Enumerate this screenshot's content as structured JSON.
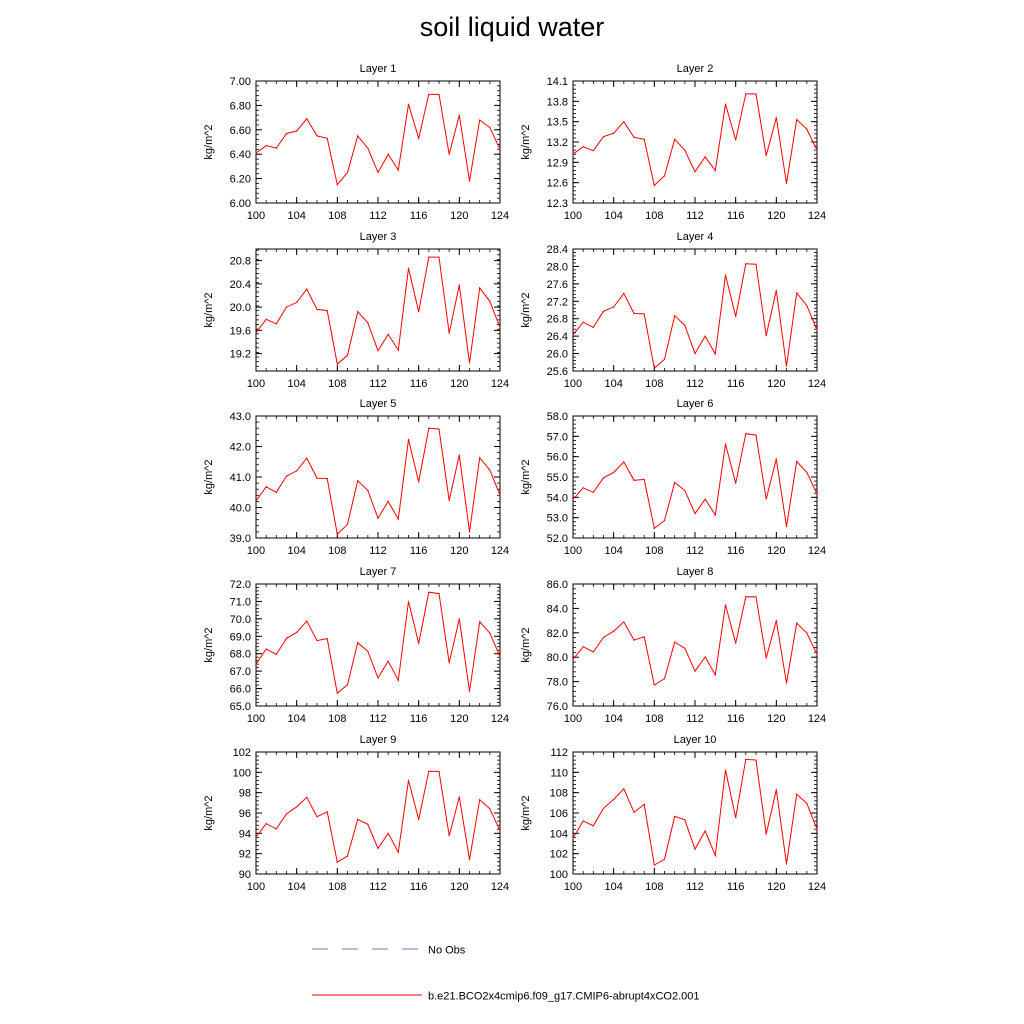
{
  "title": "soil liquid water",
  "legend": {
    "obs_label": "No Obs",
    "obs_color": "#7777cc",
    "model_label": "b.e21.BCO2x4cmip6.f09_g17.CMIP6-abrupt4xCO2.001",
    "model_color": "#ff0000"
  },
  "chart_data": [
    {
      "type": "line",
      "title": "Layer 1",
      "ylabel": "kg/m^2",
      "xlim": [
        100,
        124
      ],
      "xticks": [
        100,
        104,
        108,
        112,
        116,
        120,
        124
      ],
      "ylim": [
        6.0,
        7.0
      ],
      "yticks": [
        "6.00",
        "6.20",
        "6.40",
        "6.60",
        "6.80",
        "7.00"
      ],
      "x": [
        100,
        101,
        102,
        103,
        104,
        105,
        106,
        107,
        108,
        109,
        110,
        111,
        112,
        113,
        114,
        115,
        116,
        117,
        118,
        119,
        120,
        121,
        122,
        123,
        124
      ],
      "series": [
        {
          "name": "b.e21.BCO2x4cmip6.f09_g17.CMIP6-abrupt4xCO2.001",
          "values": [
            6.41,
            6.47,
            6.45,
            6.57,
            6.59,
            6.69,
            6.55,
            6.53,
            6.15,
            6.25,
            6.55,
            6.45,
            6.25,
            6.4,
            6.27,
            6.81,
            6.53,
            6.89,
            6.89,
            6.4,
            6.72,
            6.18,
            6.68,
            6.62,
            6.44
          ]
        }
      ]
    },
    {
      "type": "line",
      "title": "Layer 2",
      "ylabel": "kg/m^2",
      "xlim": [
        100,
        124
      ],
      "xticks": [
        100,
        104,
        108,
        112,
        116,
        120,
        124
      ],
      "ylim": [
        12.3,
        14.1
      ],
      "yticks": [
        "12.3",
        "12.6",
        "12.9",
        "13.2",
        "13.5",
        "13.8",
        "14.1"
      ],
      "x": [
        100,
        101,
        102,
        103,
        104,
        105,
        106,
        107,
        108,
        109,
        110,
        111,
        112,
        113,
        114,
        115,
        116,
        117,
        118,
        119,
        120,
        121,
        122,
        123,
        124
      ],
      "series": [
        {
          "name": "b.e21.BCO2x4cmip6.f09_g17.CMIP6-abrupt4xCO2.001",
          "values": [
            13.02,
            13.13,
            13.07,
            13.28,
            13.33,
            13.5,
            13.27,
            13.24,
            12.56,
            12.7,
            13.24,
            13.08,
            12.76,
            12.98,
            12.78,
            13.76,
            13.23,
            13.91,
            13.91,
            13.0,
            13.56,
            12.59,
            13.53,
            13.39,
            13.08
          ]
        }
      ]
    },
    {
      "type": "line",
      "title": "Layer 3",
      "ylabel": "kg/m^2",
      "xlim": [
        100,
        124
      ],
      "xticks": [
        100,
        104,
        108,
        112,
        116,
        120,
        124
      ],
      "ylim": [
        18.9,
        21.0
      ],
      "yticks": [
        "19.2",
        "19.6",
        "20.0",
        "20.4",
        "20.8"
      ],
      "x": [
        100,
        101,
        102,
        103,
        104,
        105,
        106,
        107,
        108,
        109,
        110,
        111,
        112,
        113,
        114,
        115,
        116,
        117,
        118,
        119,
        120,
        121,
        122,
        123,
        124
      ],
      "series": [
        {
          "name": "b.e21.BCO2x4cmip6.f09_g17.CMIP6-abrupt4xCO2.001",
          "values": [
            19.56,
            19.79,
            19.71,
            20.0,
            20.08,
            20.31,
            19.96,
            19.94,
            19.02,
            19.17,
            19.92,
            19.73,
            19.25,
            19.53,
            19.26,
            20.67,
            19.92,
            20.86,
            20.86,
            19.55,
            20.38,
            19.04,
            20.33,
            20.1,
            19.65
          ]
        }
      ]
    },
    {
      "type": "line",
      "title": "Layer 4",
      "ylabel": "kg/m^2",
      "xlim": [
        100,
        124
      ],
      "xticks": [
        100,
        104,
        108,
        112,
        116,
        120,
        124
      ],
      "ylim": [
        25.6,
        28.4
      ],
      "yticks": [
        "25.6",
        "26.0",
        "26.4",
        "26.8",
        "27.2",
        "27.6",
        "28.0",
        "28.4"
      ],
      "x": [
        100,
        101,
        102,
        103,
        104,
        105,
        106,
        107,
        108,
        109,
        110,
        111,
        112,
        113,
        114,
        115,
        116,
        117,
        118,
        119,
        120,
        121,
        122,
        123,
        124
      ],
      "series": [
        {
          "name": "b.e21.BCO2x4cmip6.f09_g17.CMIP6-abrupt4xCO2.001",
          "values": [
            26.43,
            26.72,
            26.6,
            26.97,
            27.07,
            27.38,
            26.92,
            26.91,
            25.66,
            25.87,
            26.87,
            26.65,
            26.0,
            26.4,
            25.99,
            27.8,
            26.85,
            28.06,
            28.05,
            26.41,
            27.45,
            25.71,
            27.39,
            27.1,
            26.54
          ]
        }
      ]
    },
    {
      "type": "line",
      "title": "Layer 5",
      "ylabel": "kg/m^2",
      "xlim": [
        100,
        124
      ],
      "xticks": [
        100,
        104,
        108,
        112,
        116,
        120,
        124
      ],
      "ylim": [
        39.0,
        43.0
      ],
      "yticks": [
        "39.0",
        "40.0",
        "41.0",
        "42.0",
        "43.0"
      ],
      "x": [
        100,
        101,
        102,
        103,
        104,
        105,
        106,
        107,
        108,
        109,
        110,
        111,
        112,
        113,
        114,
        115,
        116,
        117,
        118,
        119,
        120,
        121,
        122,
        123,
        124
      ],
      "series": [
        {
          "name": "b.e21.BCO2x4cmip6.f09_g17.CMIP6-abrupt4xCO2.001",
          "values": [
            40.22,
            40.68,
            40.5,
            41.03,
            41.2,
            41.62,
            40.96,
            40.95,
            39.12,
            39.45,
            40.88,
            40.56,
            39.65,
            40.2,
            39.62,
            42.23,
            40.84,
            42.6,
            42.57,
            40.23,
            41.72,
            39.2,
            41.63,
            41.23,
            40.41
          ]
        }
      ]
    },
    {
      "type": "line",
      "title": "Layer 6",
      "ylabel": "kg/m^2",
      "xlim": [
        100,
        124
      ],
      "xticks": [
        100,
        104,
        108,
        112,
        116,
        120,
        124
      ],
      "ylim": [
        52.0,
        58.0
      ],
      "yticks": [
        "52.0",
        "53.0",
        "54.0",
        "55.0",
        "56.0",
        "57.0",
        "58.0"
      ],
      "x": [
        100,
        101,
        102,
        103,
        104,
        105,
        106,
        107,
        108,
        109,
        110,
        111,
        112,
        113,
        114,
        115,
        116,
        117,
        118,
        119,
        120,
        121,
        122,
        123,
        124
      ],
      "series": [
        {
          "name": "b.e21.BCO2x4cmip6.f09_g17.CMIP6-abrupt4xCO2.001",
          "values": [
            53.9,
            54.47,
            54.25,
            54.96,
            55.22,
            55.74,
            54.84,
            54.88,
            52.47,
            52.86,
            54.73,
            54.34,
            53.2,
            53.91,
            53.13,
            56.63,
            54.69,
            57.13,
            57.06,
            53.92,
            55.89,
            52.56,
            55.76,
            55.23,
            54.16
          ]
        }
      ]
    },
    {
      "type": "line",
      "title": "Layer 7",
      "ylabel": "kg/m^2",
      "xlim": [
        100,
        124
      ],
      "xticks": [
        100,
        104,
        108,
        112,
        116,
        120,
        124
      ],
      "ylim": [
        65.0,
        72.0
      ],
      "yticks": [
        "65.0",
        "66.0",
        "67.0",
        "68.0",
        "69.0",
        "70.0",
        "71.0",
        "72.0"
      ],
      "x": [
        100,
        101,
        102,
        103,
        104,
        105,
        106,
        107,
        108,
        109,
        110,
        111,
        112,
        113,
        114,
        115,
        116,
        117,
        118,
        119,
        120,
        121,
        122,
        123,
        124
      ],
      "series": [
        {
          "name": "b.e21.BCO2x4cmip6.f09_g17.CMIP6-abrupt4xCO2.001",
          "values": [
            67.4,
            68.27,
            67.96,
            68.88,
            69.23,
            69.87,
            68.75,
            68.87,
            65.73,
            66.22,
            68.63,
            68.14,
            66.61,
            67.57,
            66.47,
            71.0,
            68.59,
            71.53,
            71.45,
            67.48,
            70.0,
            65.84,
            69.83,
            69.18,
            67.84
          ]
        }
      ]
    },
    {
      "type": "line",
      "title": "Layer 8",
      "ylabel": "kg/m^2",
      "xlim": [
        100,
        124
      ],
      "xticks": [
        100,
        104,
        108,
        112,
        116,
        120,
        124
      ],
      "ylim": [
        76.0,
        86.0
      ],
      "yticks": [
        "76.0",
        "78.0",
        "80.0",
        "82.0",
        "84.0",
        "86.0"
      ],
      "x": [
        100,
        101,
        102,
        103,
        104,
        105,
        106,
        107,
        108,
        109,
        110,
        111,
        112,
        113,
        114,
        115,
        116,
        117,
        118,
        119,
        120,
        121,
        122,
        123,
        124
      ],
      "series": [
        {
          "name": "b.e21.BCO2x4cmip6.f09_g17.CMIP6-abrupt4xCO2.001",
          "values": [
            79.82,
            80.86,
            80.43,
            81.62,
            82.13,
            82.89,
            81.4,
            81.67,
            77.72,
            78.24,
            81.24,
            80.74,
            78.86,
            80.02,
            78.55,
            84.3,
            81.14,
            84.95,
            84.94,
            79.93,
            83.0,
            77.87,
            82.79,
            81.99,
            80.24
          ]
        }
      ]
    },
    {
      "type": "line",
      "title": "Layer 9",
      "ylabel": "kg/m^2",
      "xlim": [
        100,
        124
      ],
      "xticks": [
        100,
        104,
        108,
        112,
        116,
        120,
        124
      ],
      "ylim": [
        90,
        102
      ],
      "yticks": [
        "90",
        "92",
        "94",
        "96",
        "98",
        "100",
        "102"
      ],
      "x": [
        100,
        101,
        102,
        103,
        104,
        105,
        106,
        107,
        108,
        109,
        110,
        111,
        112,
        113,
        114,
        115,
        116,
        117,
        118,
        119,
        120,
        121,
        122,
        123,
        124
      ],
      "series": [
        {
          "name": "b.e21.BCO2x4cmip6.f09_g17.CMIP6-abrupt4xCO2.001",
          "values": [
            93.63,
            94.96,
            94.44,
            95.92,
            96.61,
            97.54,
            95.64,
            96.12,
            91.17,
            91.77,
            95.37,
            94.89,
            92.52,
            94.0,
            92.14,
            99.22,
            95.36,
            100.11,
            100.09,
            93.77,
            97.58,
            91.41,
            97.3,
            96.42,
            94.25
          ]
        }
      ]
    },
    {
      "type": "line",
      "title": "Layer 10",
      "ylabel": "kg/m^2",
      "xlim": [
        100,
        124
      ],
      "xticks": [
        100,
        104,
        108,
        112,
        116,
        120,
        124
      ],
      "ylim": [
        100,
        112
      ],
      "yticks": [
        "100",
        "102",
        "104",
        "106",
        "108",
        "110",
        "112"
      ],
      "x": [
        100,
        101,
        102,
        103,
        104,
        105,
        106,
        107,
        108,
        109,
        110,
        111,
        112,
        113,
        114,
        115,
        116,
        117,
        118,
        119,
        120,
        121,
        122,
        123,
        124
      ],
      "series": [
        {
          "name": "b.e21.BCO2x4cmip6.f09_g17.CMIP6-abrupt4xCO2.001",
          "values": [
            103.53,
            105.22,
            104.74,
            106.46,
            107.34,
            108.38,
            106.07,
            106.85,
            100.89,
            101.45,
            105.67,
            105.33,
            102.45,
            104.24,
            101.83,
            110.23,
            105.55,
            111.27,
            111.21,
            103.92,
            108.3,
            100.98,
            107.85,
            106.95,
            104.41
          ]
        }
      ]
    }
  ]
}
